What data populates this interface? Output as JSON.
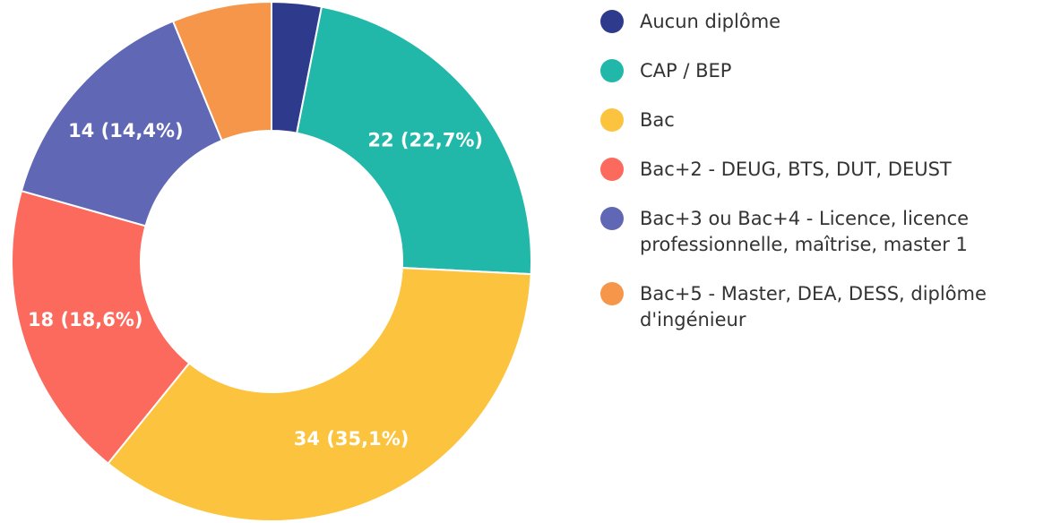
{
  "chart_data": {
    "type": "donut",
    "categories": [
      "Aucun diplôme",
      "CAP / BEP",
      "Bac",
      "Bac+2 - DEUG, BTS, DUT, DEUST",
      "Bac+3 ou Bac+4 - Licence, licence professionnelle, maîtrise, master 1",
      "Bac+5 - Master, DEA, DESS, diplôme d'ingénieur"
    ],
    "values": [
      3,
      22,
      34,
      18,
      14,
      6
    ],
    "value_labels": [
      null,
      "22 (22,7%)",
      "34 (35,1%)",
      "18 (18,6%)",
      "14 (14,4%)",
      null
    ],
    "colors": [
      "#2e3a8c",
      "#21b8a9",
      "#fcc43e",
      "#fb6a5d",
      "#6068b6",
      "#f6964a"
    ],
    "legend": "right"
  }
}
